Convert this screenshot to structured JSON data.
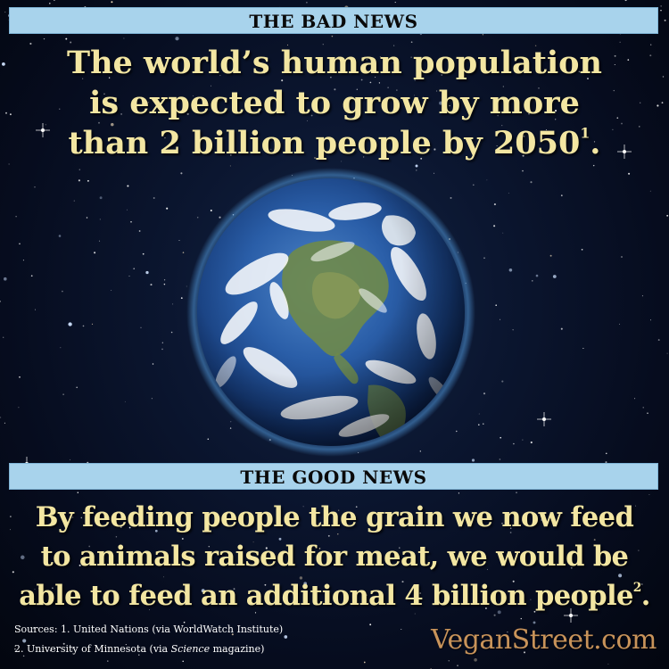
{
  "bad_news": {
    "banner": "THE BAD NEWS",
    "headline_lines": [
      "The world’s human population",
      "is expected to grow by more",
      "than 2 billion people by 2050"
    ],
    "footnote_marker": "1"
  },
  "good_news": {
    "banner": "THE GOOD NEWS",
    "headline_lines": [
      "By feeding people the grain we now feed",
      "to animals raised for meat, we would be",
      "able to feed an additional 4 billion people"
    ],
    "footnote_marker": "2"
  },
  "sources": {
    "line1": "Sources: 1. United Nations (via WorldWatch Institute)",
    "line2_prefix": "2. University of Minnesota (via ",
    "line2_italic": "Science",
    "line2_suffix": " magazine)"
  },
  "brand": {
    "text": "VeganStreet.com"
  },
  "colors": {
    "banner": "#a8d3ec",
    "headline": "#f3e6a2",
    "brand": "#c8935a",
    "background": "#050a1c"
  },
  "image": {
    "subject": "earth-globe-icon"
  }
}
